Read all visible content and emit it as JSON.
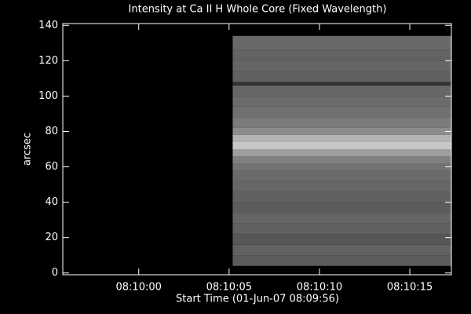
{
  "chart_data": {
    "type": "image",
    "title": "Intensity at Ca II H Whole Core (Fixed Wavelength)",
    "xlabel": "Start Time (01-Jun-07 08:09:56)",
    "ylabel": "arcsec",
    "xlim": [
      -0.2,
      21.3
    ],
    "xticks": [
      {
        "value": 4,
        "label": "08:10:00"
      },
      {
        "value": 9,
        "label": "08:10:05"
      },
      {
        "value": 14,
        "label": "08:10:10"
      },
      {
        "value": 19,
        "label": "08:10:15"
      }
    ],
    "ylim": [
      -1,
      141
    ],
    "yticks": [
      0,
      20,
      40,
      60,
      80,
      100,
      120,
      140
    ],
    "image": {
      "x_extent": [
        9.2,
        21.3
      ],
      "y_edges": [
        4,
        10,
        16,
        22,
        28,
        34,
        40,
        46,
        52,
        58,
        62,
        66,
        70,
        74,
        78,
        82,
        88,
        94,
        100,
        106,
        108,
        114,
        120,
        126,
        134
      ],
      "intensity": [
        0.36,
        0.38,
        0.34,
        0.38,
        0.4,
        0.36,
        0.38,
        0.4,
        0.42,
        0.45,
        0.5,
        0.62,
        0.78,
        0.7,
        0.55,
        0.48,
        0.44,
        0.42,
        0.4,
        0.2,
        0.38,
        0.4,
        0.39,
        0.41
      ]
    }
  }
}
